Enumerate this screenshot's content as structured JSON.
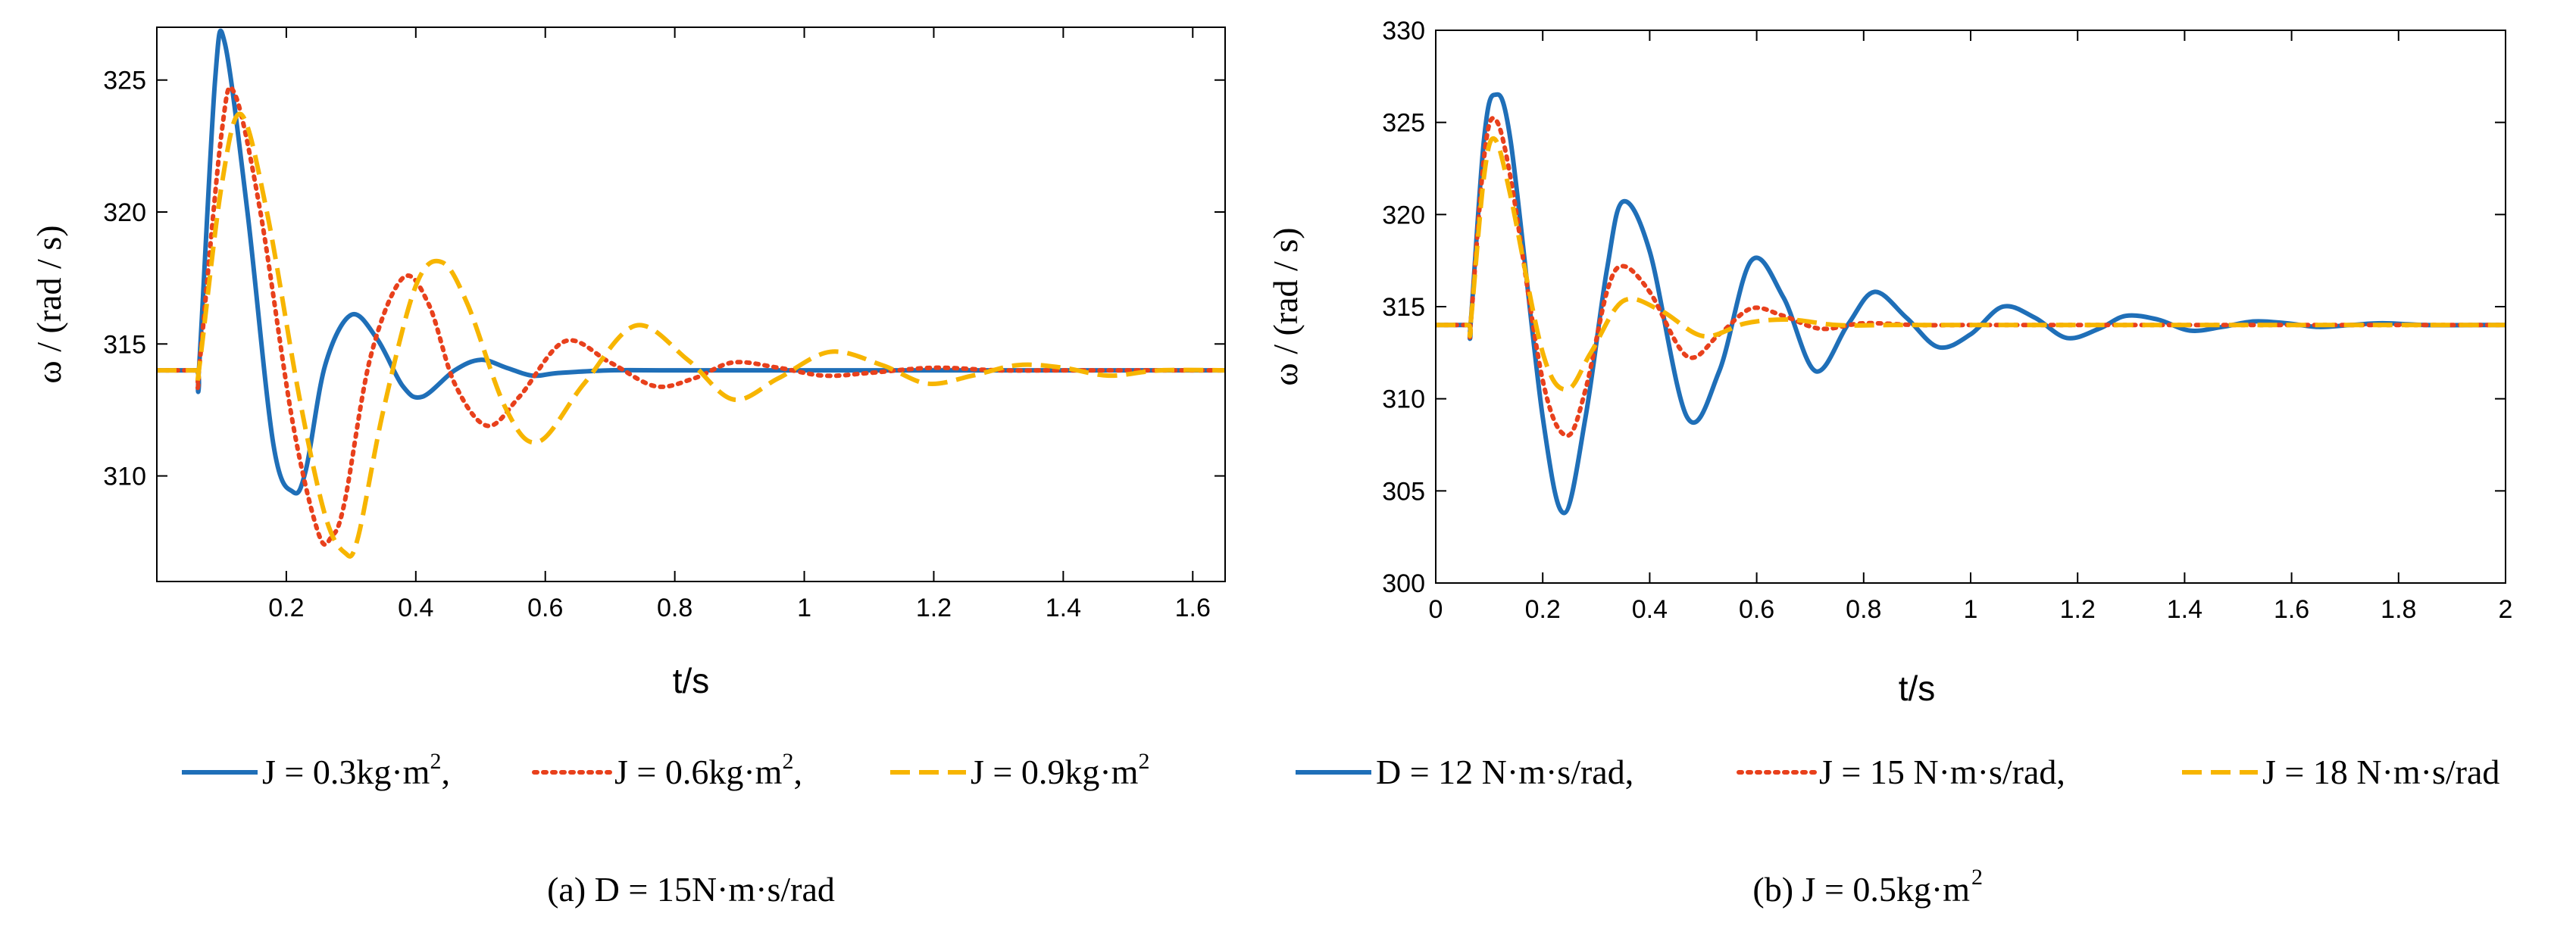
{
  "colors": {
    "blue": "#1f6fb8",
    "red": "#e8401c",
    "yellow": "#f7b500"
  },
  "chart_data": [
    {
      "type": "line",
      "xlabel": "t/s",
      "ylabel": "ω / (rad / s)",
      "xlim": [
        0,
        1.65
      ],
      "ylim": [
        306,
        327
      ],
      "xticks": [
        "0.2",
        "0.4",
        "0.6",
        "0.8",
        "1",
        "1.2",
        "1.4",
        "1.6"
      ],
      "xtick_values": [
        0.2,
        0.4,
        0.6,
        0.8,
        1,
        1.2,
        1.4,
        1.6
      ],
      "yticks": [
        "310",
        "315",
        "320",
        "325"
      ],
      "ytick_values": [
        310,
        315,
        320,
        325
      ],
      "legend_prefix": [
        "J = 0.3kg·m",
        "J = 0.6kg·m",
        "J = 0.9kg·m"
      ],
      "legend_sup": [
        "2",
        "2",
        "2"
      ],
      "legend_suffix": [
        ",",
        ",",
        ""
      ],
      "caption": {
        "a": "(a) D = 15N·m·s/rad"
      },
      "series": [
        {
          "name": "J = 0.3kg·m2",
          "color": "#1f6fb8",
          "dash": "solid",
          "x": [
            0,
            0.06,
            0.065,
            0.09,
            0.105,
            0.14,
            0.18,
            0.21,
            0.23,
            0.26,
            0.3,
            0.34,
            0.38,
            0.41,
            0.46,
            0.5,
            0.54,
            0.58,
            0.62,
            0.7,
            0.8,
            1.0,
            1.3,
            1.65
          ],
          "y": [
            314,
            314,
            314,
            325,
            326.4,
            320,
            311.2,
            309.4,
            310.2,
            314.2,
            316.1,
            315.2,
            313.4,
            313.0,
            314.0,
            314.4,
            314.1,
            313.8,
            313.9,
            314.0,
            314.0,
            314.0,
            314.0,
            314.0
          ]
        },
        {
          "name": "J = 0.6kg·m2",
          "color": "#e8401c",
          "dash": "dot",
          "x": [
            0,
            0.06,
            0.065,
            0.1,
            0.12,
            0.16,
            0.21,
            0.25,
            0.27,
            0.29,
            0.33,
            0.38,
            0.42,
            0.46,
            0.51,
            0.56,
            0.63,
            0.7,
            0.77,
            0.83,
            0.89,
            0.96,
            1.03,
            1.1,
            1.2,
            1.3,
            1.4,
            1.5,
            1.65
          ],
          "y": [
            314,
            314,
            314,
            323,
            324.5,
            320,
            312,
            307.8,
            307.7,
            309,
            314.5,
            317.5,
            316.5,
            313.5,
            311.9,
            313.0,
            315.1,
            314.3,
            313.4,
            313.7,
            314.3,
            314.1,
            313.8,
            313.9,
            314.1,
            314.0,
            314.0,
            314.0,
            314.0
          ]
        },
        {
          "name": "J = 0.9kg·m2",
          "color": "#f7b500",
          "dash": "dash",
          "x": [
            0,
            0.06,
            0.065,
            0.1,
            0.13,
            0.17,
            0.22,
            0.26,
            0.29,
            0.31,
            0.35,
            0.4,
            0.44,
            0.48,
            0.54,
            0.59,
            0.66,
            0.74,
            0.82,
            0.89,
            0.96,
            1.04,
            1.12,
            1.19,
            1.26,
            1.33,
            1.4,
            1.47,
            1.55,
            1.65
          ],
          "y": [
            314,
            314,
            314,
            321,
            323.7,
            320,
            313,
            308.5,
            307.1,
            307.6,
            312.5,
            317.2,
            318.1,
            316.5,
            312.5,
            311.3,
            313.5,
            315.7,
            314.4,
            312.9,
            313.7,
            314.7,
            314.2,
            313.5,
            313.8,
            314.2,
            314.1,
            313.8,
            314.0,
            314.0
          ]
        }
      ]
    },
    {
      "type": "line",
      "xlabel": "t/s",
      "ylabel": "ω / (rad / s)",
      "xlim": [
        0,
        2
      ],
      "ylim": [
        300,
        330
      ],
      "xticks": [
        "0",
        "0.2",
        "0.4",
        "0.6",
        "0.8",
        "1",
        "1.2",
        "1.4",
        "1.6",
        "1.8",
        "2"
      ],
      "xtick_values": [
        0,
        0.2,
        0.4,
        0.6,
        0.8,
        1,
        1.2,
        1.4,
        1.6,
        1.8,
        2
      ],
      "yticks": [
        "300",
        "305",
        "310",
        "315",
        "320",
        "325",
        "330"
      ],
      "ytick_values": [
        300,
        305,
        310,
        315,
        320,
        325,
        330
      ],
      "legend_prefix": [
        "D = 12 N·m·s/rad,",
        "J = 15 N·m·s/rad,",
        "J = 18 N·m·s/rad"
      ],
      "legend_sup": [
        "",
        "",
        ""
      ],
      "legend_suffix": [
        "",
        "",
        ""
      ],
      "caption": {
        "b": "(b) J = 0.5kg·m"
      },
      "caption_sup": "2",
      "series": [
        {
          "name": "D = 12 N·m·s/rad",
          "color": "#1f6fb8",
          "dash": "solid",
          "x": [
            0,
            0.06,
            0.065,
            0.09,
            0.11,
            0.14,
            0.2,
            0.24,
            0.28,
            0.32,
            0.35,
            0.4,
            0.47,
            0.53,
            0.59,
            0.65,
            0.71,
            0.77,
            0.82,
            0.88,
            0.94,
            1.0,
            1.06,
            1.12,
            1.18,
            1.24,
            1.29,
            1.35,
            1.41,
            1.47,
            1.53,
            1.59,
            1.65,
            1.71,
            1.77,
            1.85,
            1.95,
            2.0
          ],
          "y": [
            314,
            314,
            314,
            324,
            326.5,
            324,
            309,
            303.8,
            309,
            317,
            320.7,
            318,
            309,
            311.5,
            317.5,
            315.5,
            311.5,
            314.0,
            315.8,
            314.4,
            312.8,
            313.5,
            315.0,
            314.4,
            313.3,
            313.8,
            314.5,
            314.3,
            313.7,
            313.9,
            314.2,
            314.1,
            313.9,
            314.0,
            314.1,
            314.0,
            314.0,
            314.0
          ]
        },
        {
          "name": "J = 15 N·m·s/rad",
          "color": "#e8401c",
          "dash": "dot",
          "x": [
            0,
            0.06,
            0.065,
            0.09,
            0.11,
            0.14,
            0.2,
            0.245,
            0.28,
            0.32,
            0.35,
            0.4,
            0.47,
            0.53,
            0.59,
            0.65,
            0.72,
            0.8,
            0.9,
            1.0,
            1.2,
            1.5,
            2.0
          ],
          "y": [
            314,
            314,
            314,
            323,
            325.2,
            322,
            311,
            308,
            310.5,
            315.8,
            317.2,
            315.8,
            312.3,
            313.5,
            314.9,
            314.5,
            313.8,
            314.1,
            314.0,
            314.0,
            314.0,
            314.0,
            314.0
          ]
        },
        {
          "name": "J = 18 N·m·s/rad",
          "color": "#f7b500",
          "dash": "dash",
          "x": [
            0,
            0.06,
            0.065,
            0.09,
            0.11,
            0.14,
            0.2,
            0.245,
            0.29,
            0.35,
            0.42,
            0.5,
            0.58,
            0.66,
            0.75,
            0.85,
            1.0,
            1.3,
            2.0
          ],
          "y": [
            314,
            314,
            314,
            322,
            324.1,
            321,
            312.5,
            310.5,
            312.5,
            315.3,
            314.8,
            313.4,
            314.1,
            314.3,
            314.0,
            314.0,
            314.0,
            314.0,
            314.0
          ]
        }
      ]
    }
  ]
}
